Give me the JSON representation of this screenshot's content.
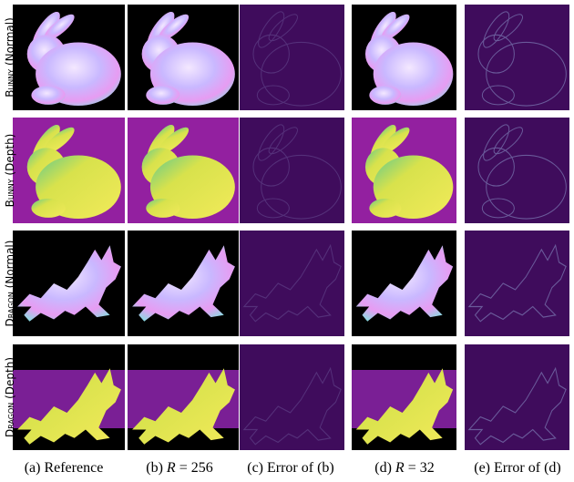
{
  "rows": [
    {
      "object": "Bunny",
      "mode": "(Normal)"
    },
    {
      "object": "Bunny",
      "mode": "(Depth)"
    },
    {
      "object": "Dragon",
      "mode": "(Normal)"
    },
    {
      "object": "Dragon",
      "mode": "(Depth)"
    }
  ],
  "captions": [
    {
      "label": "(a)",
      "text": "Reference"
    },
    {
      "label": "(b)",
      "var": "R",
      "text": "= 256"
    },
    {
      "label": "(c)",
      "text": "Error of (b)"
    },
    {
      "label": "(d)",
      "var": "R",
      "text": "= 32"
    },
    {
      "label": "(e)",
      "text": "Error of (d)"
    }
  ]
}
